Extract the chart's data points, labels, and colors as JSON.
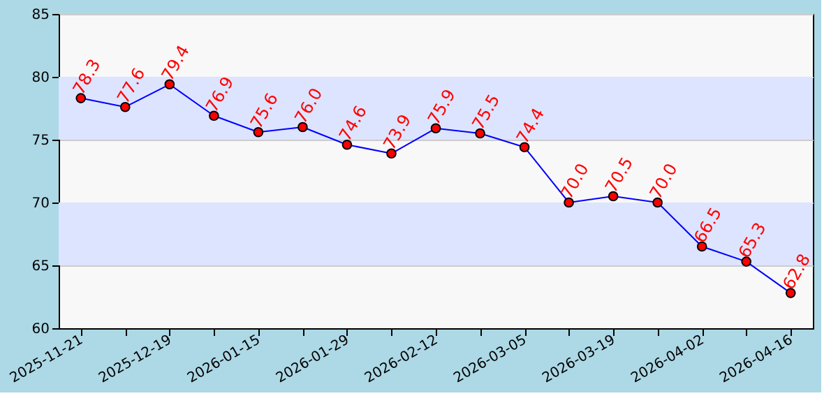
{
  "chart_data": {
    "type": "line",
    "categories": [
      "2025-11-21",
      null,
      "2025-12-19",
      null,
      "2026-01-15",
      null,
      "2026-01-29",
      null,
      "2026-02-12",
      null,
      "2026-03-05",
      null,
      "2026-03-19",
      null,
      "2026-04-02",
      null,
      "2026-04-16"
    ],
    "series": [
      {
        "color": "#0000ff",
        "values": [
          78.3,
          77.6,
          79.4,
          76.9,
          75.6,
          76.0,
          74.6,
          73.9,
          75.9,
          75.5,
          74.4,
          70.0,
          70.5,
          70.0,
          66.5,
          65.3,
          62.8
        ]
      }
    ],
    "ylim": [
      60,
      85
    ],
    "yticks": [
      60,
      65,
      70,
      75,
      80,
      85
    ],
    "grid": "y",
    "marker": "circle",
    "line_style": "solid",
    "value_labels": [
      "78.3",
      "77.6",
      "79.4",
      "76.9",
      "75.6",
      "76.0",
      "74.6",
      "73.9",
      "75.9",
      "75.5",
      "74.4",
      "70.0",
      "70.5",
      "70.0",
      "66.5",
      "65.3",
      "62.8"
    ],
    "bands": [
      {
        "axis": "y",
        "from": 65,
        "to": 70,
        "color": "#dde4ff"
      },
      {
        "axis": "y",
        "from": 75,
        "to": 80,
        "color": "#dde4ff"
      }
    ]
  }
}
